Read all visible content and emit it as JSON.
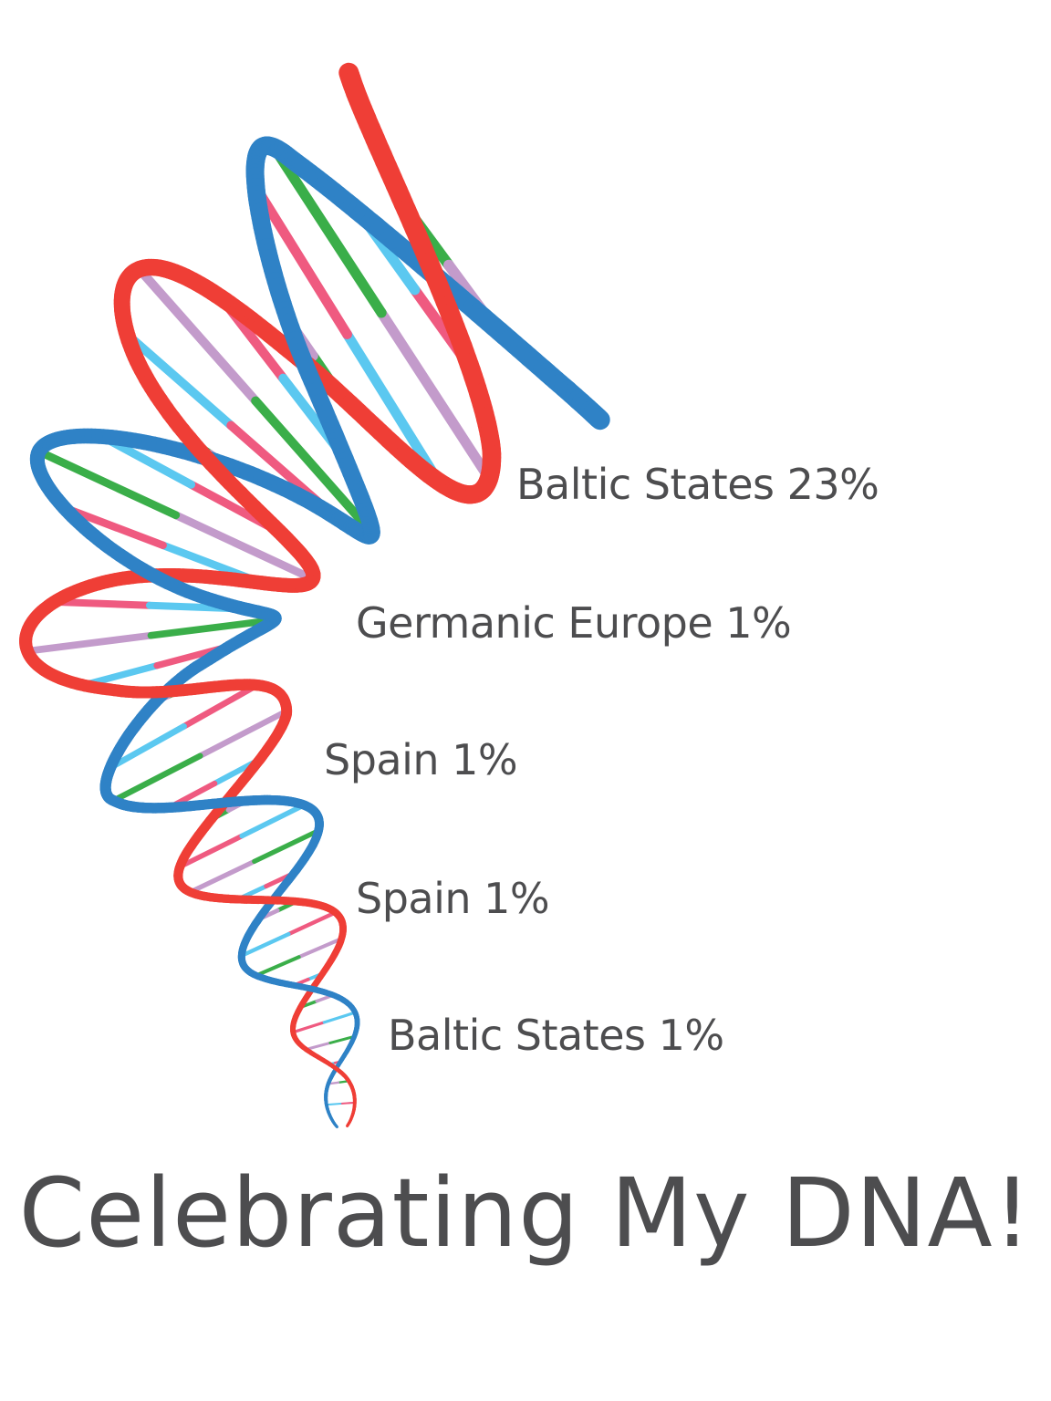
{
  "ancestry": [
    {
      "label": "Baltic States 23%"
    },
    {
      "label": "Germanic Europe 1%"
    },
    {
      "label": "Spain 1%"
    },
    {
      "label": "Spain 1%"
    },
    {
      "label": "Baltic States 1%"
    }
  ],
  "title": "Celebrating My DNA!",
  "colors": {
    "strand_a": "#ef3e36",
    "strand_b": "#2f82c6",
    "base_green": "#3aae49",
    "base_pink": "#ef5a80",
    "base_purple": "#c39bcb",
    "base_cyan": "#5bc8f0",
    "text": "#4d4d4f"
  },
  "icons": {
    "helix": "dna-helix-illustration"
  }
}
